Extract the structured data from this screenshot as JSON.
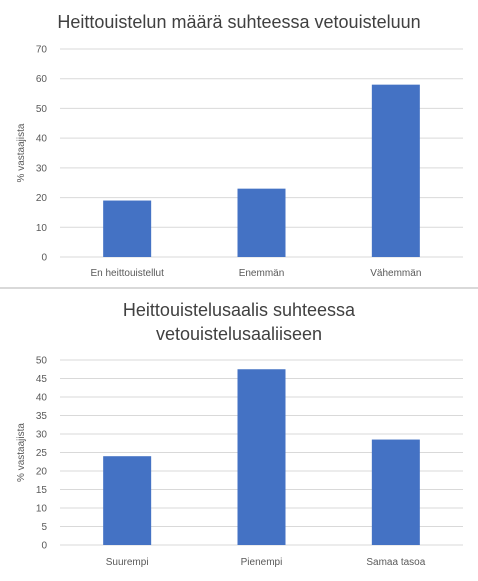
{
  "chart_data": [
    {
      "type": "bar",
      "title": [
        "Heittouistelun määrä suhteessa vetouisteluun"
      ],
      "xlabel": "",
      "ylabel": "% vastaajista",
      "categories": [
        "En heittouistellut",
        "Enemmän",
        "Vähemmän"
      ],
      "values": [
        19,
        23,
        58
      ],
      "ylim": [
        0,
        70
      ],
      "yticks": [
        0,
        10,
        20,
        30,
        40,
        50,
        60,
        70
      ],
      "grid": true,
      "legend": "none",
      "colors": {
        "bar": "#4472c4",
        "grid": "#d9d9d9"
      }
    },
    {
      "type": "bar",
      "title": [
        "Heittouistelusaalis suhteessa",
        "vetouistelusaaliiseen"
      ],
      "xlabel": "",
      "ylabel": "% vastaajista",
      "categories": [
        "Suurempi",
        "Pienempi",
        "Samaa tasoa"
      ],
      "values": [
        24,
        47.5,
        28.5
      ],
      "ylim": [
        0,
        50
      ],
      "yticks": [
        0,
        5,
        10,
        15,
        20,
        25,
        30,
        35,
        40,
        45,
        50
      ],
      "grid": true,
      "legend": "none",
      "colors": {
        "bar": "#4472c4",
        "grid": "#d9d9d9"
      }
    }
  ]
}
